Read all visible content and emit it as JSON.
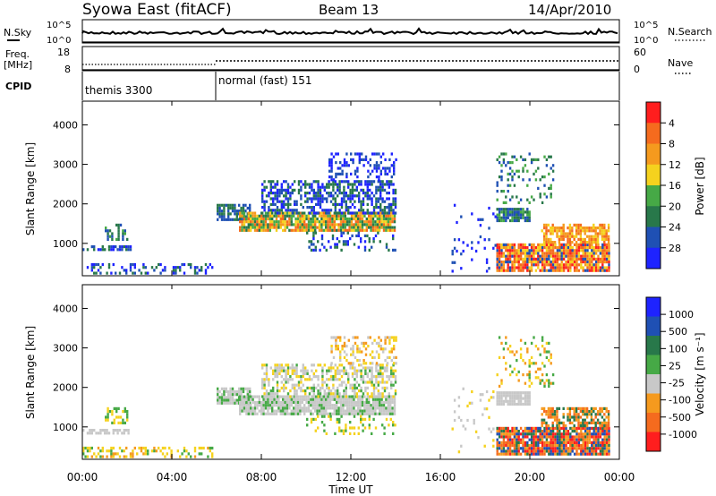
{
  "header": {
    "station": "Syowa East (fitACF)",
    "beam": "Beam 13",
    "date": "14/Apr/2010"
  },
  "strips": {
    "nsky_label": "N.Sky",
    "nsearch_label": "N.Search",
    "left_axis_ticks": [
      "10^5",
      "10^0"
    ],
    "right_axis_ticks": [
      "10^5",
      "10^0"
    ],
    "freq_label": "Freq.",
    "freq_unit": "[MHz]",
    "freq_ticks": [
      "18",
      "8"
    ],
    "nave_label": "Nave",
    "nave_ticks": [
      "60",
      "0"
    ],
    "cpid_label": "CPID",
    "cpid_modes": [
      "themis 3300",
      "normal (fast) 151"
    ]
  },
  "colors": {
    "scale": [
      "#1e23ff",
      "#1f50b4",
      "#28784a",
      "#46a946",
      "#f5d21e",
      "#f59a1e",
      "#f56b1e",
      "#ff1e1e"
    ],
    "gray": "#c8c8c8"
  },
  "chart_data": [
    {
      "type": "heatmap",
      "name": "power",
      "ylabel": "Slant Range [km]",
      "xlabel": "Time UT",
      "x_ticks": [
        "00:00",
        "04:00",
        "08:00",
        "12:00",
        "16:00",
        "20:00",
        "00:00"
      ],
      "y_ticks": [
        1000,
        2000,
        3000,
        4000
      ],
      "ylim": [
        180,
        4600
      ],
      "xlim_hours": [
        0,
        24
      ],
      "colorbar": {
        "label": "Power [dB]",
        "ticks": [
          "4",
          "8",
          "12",
          "16",
          "20",
          "24",
          "28"
        ],
        "range": [
          0,
          30
        ]
      }
    },
    {
      "type": "heatmap",
      "name": "velocity",
      "ylabel": "Slant Range [km]",
      "xlabel": "Time UT",
      "x_ticks": [
        "00:00",
        "04:00",
        "08:00",
        "12:00",
        "16:00",
        "20:00",
        "00:00"
      ],
      "y_ticks": [
        1000,
        2000,
        3000,
        4000
      ],
      "ylim": [
        180,
        4600
      ],
      "xlim_hours": [
        0,
        24
      ],
      "colorbar": {
        "label": "Velocity [m s⁻¹]",
        "ticks": [
          "1000",
          "500",
          "100",
          "25",
          "-25",
          "-100",
          "-500",
          "-1000"
        ]
      }
    }
  ]
}
